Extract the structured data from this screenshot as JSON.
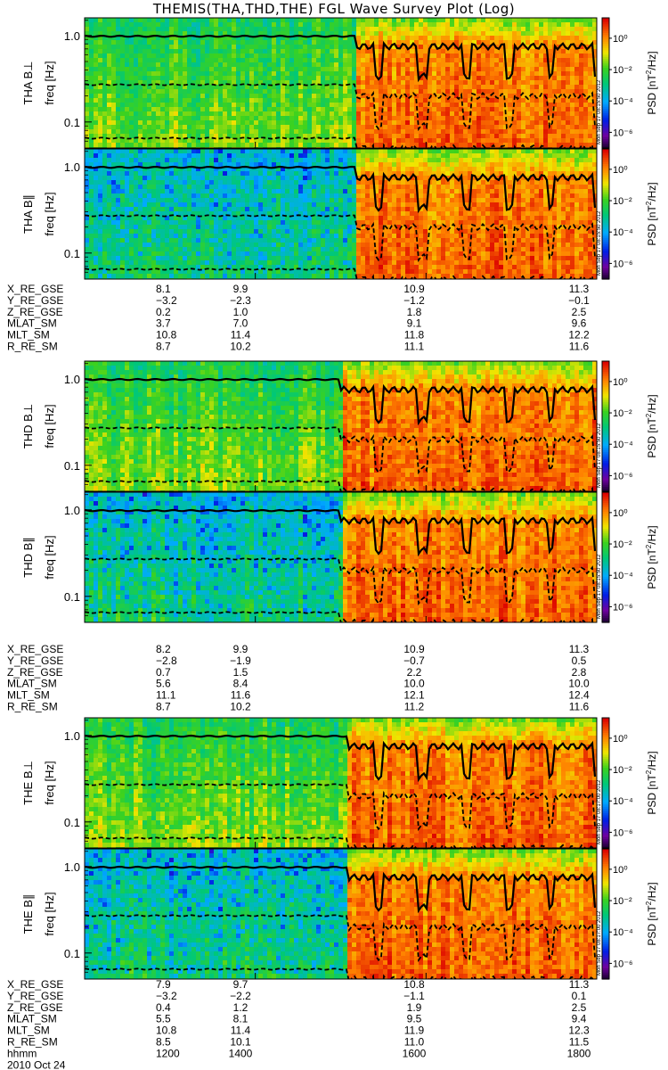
{
  "chart_data": {
    "type": "heatmap",
    "title": "THEMIS(THA,THD,THE) FGL Wave Survey Plot (Log)",
    "date_label": "2010 Oct 24",
    "x_axis": {
      "name": "hhmm",
      "ticks": [
        "1200",
        "1400",
        "1600",
        "1800"
      ],
      "range_hhmm": [
        "1200",
        "1800"
      ]
    },
    "y_axis": {
      "label": "freq [Hz]",
      "scale": "log",
      "ticks": [
        "1.0",
        "0.1"
      ],
      "range_hz": [
        0.05,
        1.6
      ]
    },
    "colorbar": {
      "label": "PSD [nT²/Hz]",
      "label_base": "PSD [nT",
      "label_sup": "2",
      "label_tail": "/Hz]",
      "scale": "log",
      "ticks": [
        "10⁰",
        "10⁻²",
        "10⁻⁴",
        "10⁻⁶"
      ],
      "tick_exponents": [
        0,
        -2,
        -4,
        -6
      ],
      "range_exp": [
        -7,
        1.3
      ]
    },
    "panels": [
      {
        "label": "THA B⊥",
        "probe": "THA",
        "component": "perp",
        "transition_hhmm": "1510",
        "stamp": "Mon Sep 17 08:15:50 2012"
      },
      {
        "label": "THA B∥",
        "probe": "THA",
        "component": "par",
        "transition_hhmm": "1510",
        "stamp": "Mon Sep 17 08:15:50 2012"
      },
      {
        "label": "THD B⊥",
        "probe": "THD",
        "component": "perp",
        "transition_hhmm": "1500",
        "stamp": "Mon Sep 17 08:15:50 2012"
      },
      {
        "label": "THD B∥",
        "probe": "THD",
        "component": "par",
        "transition_hhmm": "1500",
        "stamp": "Mon Sep 17 08:15:50 2012"
      },
      {
        "label": "THE B⊥",
        "probe": "THE",
        "component": "perp",
        "transition_hhmm": "1505",
        "stamp": "Mon Sep 17 08:17:00 2012"
      },
      {
        "label": "THE B∥",
        "probe": "THE",
        "component": "par",
        "transition_hhmm": "1505",
        "stamp": "Mon Sep 17 08:17:00 2012"
      }
    ],
    "ephemeris": [
      {
        "probe": "THA",
        "rows": [
          {
            "name": "X_RE_GSE",
            "values": [
              "8.1",
              "9.9",
              "10.9",
              "11.3"
            ]
          },
          {
            "name": "Y_RE_GSE",
            "values": [
              "−3.2",
              "−2.3",
              "−1.2",
              "−0.1"
            ]
          },
          {
            "name": "Z_RE_GSE",
            "values": [
              "0.2",
              "1.0",
              "1.8",
              "2.5"
            ]
          },
          {
            "name": "MLAT_SM",
            "values": [
              "3.7",
              "7.0",
              "9.1",
              "9.6"
            ]
          },
          {
            "name": "MLT_SM",
            "values": [
              "10.8",
              "11.4",
              "11.8",
              "12.2"
            ]
          },
          {
            "name": "R_RE_SM",
            "values": [
              "8.7",
              "10.2",
              "11.1",
              "11.6"
            ]
          }
        ]
      },
      {
        "probe": "THD",
        "rows": [
          {
            "name": "X_RE_GSE",
            "values": [
              "8.2",
              "9.9",
              "10.9",
              "11.3"
            ]
          },
          {
            "name": "Y_RE_GSE",
            "values": [
              "−2.8",
              "−1.9",
              "−0.7",
              "0.5"
            ]
          },
          {
            "name": "Z_RE_GSE",
            "values": [
              "0.7",
              "1.5",
              "2.2",
              "2.8"
            ]
          },
          {
            "name": "MLAT_SM",
            "values": [
              "5.6",
              "8.4",
              "10.0",
              "10.0"
            ]
          },
          {
            "name": "MLT_SM",
            "values": [
              "11.1",
              "11.6",
              "12.1",
              "12.4"
            ]
          },
          {
            "name": "R_RE_SM",
            "values": [
              "8.7",
              "10.2",
              "11.2",
              "11.6"
            ]
          }
        ]
      },
      {
        "probe": "THE",
        "rows": [
          {
            "name": "X_RE_GSE",
            "values": [
              "7.9",
              "9.7",
              "10.8",
              "11.3"
            ]
          },
          {
            "name": "Y_RE_GSE",
            "values": [
              "−3.2",
              "−2.2",
              "−1.1",
              "0.1"
            ]
          },
          {
            "name": "Z_RE_GSE",
            "values": [
              "0.4",
              "1.2",
              "1.9",
              "2.5"
            ]
          },
          {
            "name": "MLAT_SM",
            "values": [
              "5.5",
              "8.1",
              "9.5",
              "9.4"
            ]
          },
          {
            "name": "MLT_SM",
            "values": [
              "10.8",
              "11.4",
              "11.9",
              "12.3"
            ]
          },
          {
            "name": "R_RE_SM",
            "values": [
              "8.5",
              "10.1",
              "11.0",
              "11.5"
            ]
          }
        ]
      }
    ],
    "overlays": [
      {
        "name": "solid",
        "style": "solid",
        "freq_before_hz": 0.98,
        "freq_after_hz": 0.75
      },
      {
        "name": "dashed-upper",
        "style": "dashed",
        "freq_before_hz": 0.27,
        "freq_after_hz": 0.2
      },
      {
        "name": "dashed-lower",
        "style": "dashed",
        "freq_before_hz": 0.065,
        "freq_after_hz": 0.05
      }
    ]
  }
}
